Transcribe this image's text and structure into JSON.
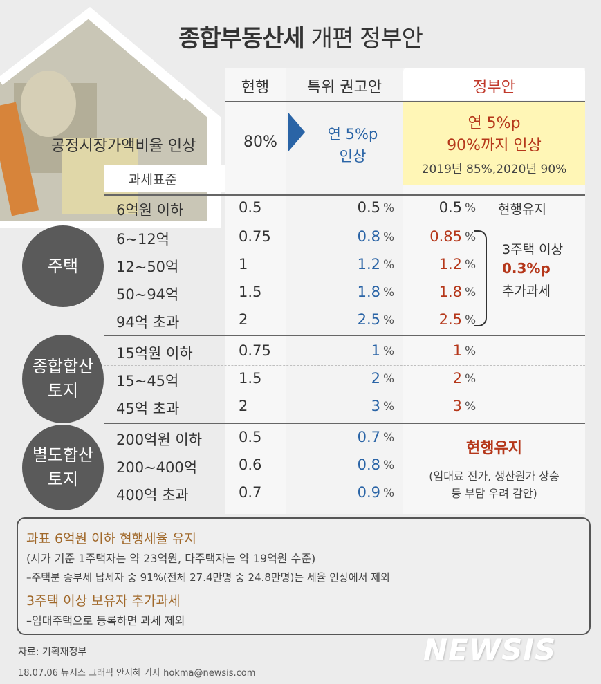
{
  "title_bold": "종합부동산세",
  "title_rest": " 개편 정부안",
  "columns": {
    "current": "현행",
    "recommend": "특위 권고안",
    "gov": "정부안"
  },
  "fmv": {
    "label": "공정시장가액비율 인상",
    "current": "80%",
    "recommend_line1": "연 5%p",
    "recommend_line2": "인상",
    "gov_line1": "연 5%p",
    "gov_line2": "90%까지 인상",
    "gov_line3": "2019년 85%,2020년 90%"
  },
  "tax_base_header": "과세표준",
  "housing": {
    "category": "주택",
    "rows": [
      {
        "label": "6억원 이하",
        "current": "0.5",
        "rec": "0.5",
        "gov": "0.5"
      },
      {
        "label": "6~12억",
        "current": "0.75",
        "rec": "0.8",
        "gov": "0.85"
      },
      {
        "label": "12~50억",
        "current": "1",
        "rec": "1.2",
        "gov": "1.2"
      },
      {
        "label": "50~94억",
        "current": "1.5",
        "rec": "1.8",
        "gov": "1.8"
      },
      {
        "label": "94억 초과",
        "current": "2",
        "rec": "2.5",
        "gov": "2.5"
      }
    ],
    "note_keep": "현행유지",
    "note_extra_1": "3주택 이상",
    "note_extra_2": "0.3%p",
    "note_extra_3": "추가과세"
  },
  "land_combined": {
    "category_1": "종합합산",
    "category_2": "토지",
    "rows": [
      {
        "label": "15억원 이하",
        "current": "0.75",
        "rec": "1",
        "gov": "1"
      },
      {
        "label": "15~45억",
        "current": "1.5",
        "rec": "2",
        "gov": "2"
      },
      {
        "label": "45억 초과",
        "current": "2",
        "rec": "3",
        "gov": "3"
      }
    ]
  },
  "land_separate": {
    "category_1": "별도합산",
    "category_2": "토지",
    "rows": [
      {
        "label": "200억원 이하",
        "current": "0.5",
        "rec": "0.7"
      },
      {
        "label": "200~400억",
        "current": "0.6",
        "rec": "0.8"
      },
      {
        "label": "400억 초과",
        "current": "0.7",
        "rec": "0.9"
      }
    ],
    "gov_keep": "현행유지",
    "gov_reason_1": "(임대료 전가, 생산원가 상승",
    "gov_reason_2": "등 부담 우려 감안)"
  },
  "pct": "%",
  "notes": {
    "line1": "과표 6억원 이하 현행세율 유지",
    "line2": "(시가 기준 1주택자는 약 23억원, 다주택자는 약 19억원 수준)",
    "line3": "–주택분 종부세 납세자 중 91%(전체 27.4만명 중 24.8만명)는 세율 인상에서 제외",
    "line4": "3주택 이상 보유자 추가과세",
    "line5": "–임대주택으로 등록하면 과세 제외"
  },
  "source": "자료: 기획재정부",
  "credit": "18.07.06 뉴시스 그래픽 안지혜 기자 hokma@newsis.com",
  "watermark": "NEWSIS",
  "colors": {
    "blue": "#2a64a6",
    "red": "#b5371a",
    "highlight": "#fff6b6",
    "note_orange": "#a0682a"
  }
}
